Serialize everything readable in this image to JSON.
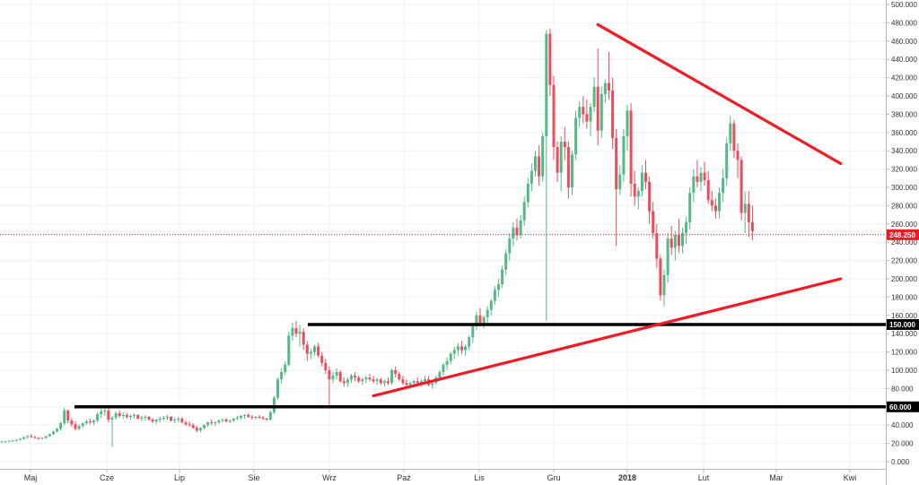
{
  "chart_data": {
    "type": "candlestick",
    "title": "",
    "xlabel": "",
    "ylabel": "",
    "ylim": [
      -8,
      500
    ],
    "y_ticks": [
      0,
      20,
      40,
      60,
      80,
      100,
      120,
      140,
      160,
      180,
      200,
      220,
      240,
      260,
      280,
      300,
      320,
      340,
      360,
      380,
      400,
      420,
      440,
      460,
      480,
      500
    ],
    "y_tick_labels": [
      "0.000",
      "20.000",
      "40.000",
      "60.000",
      "80.000",
      "100.000",
      "120.000",
      "140.000",
      "160.000",
      "180.000",
      "200.000",
      "220.000",
      "240.000",
      "260.000",
      "280.000",
      "300.000",
      "320.000",
      "340.000",
      "360.000",
      "380.000",
      "400.000",
      "420.000",
      "440.000",
      "460.000",
      "480.000",
      "500.000"
    ],
    "x_ticks": [
      {
        "label": "Maj",
        "bold": false
      },
      {
        "label": "Cze",
        "bold": false
      },
      {
        "label": "Lip",
        "bold": false
      },
      {
        "label": "Sie",
        "bold": false
      },
      {
        "label": "Wrz",
        "bold": false
      },
      {
        "label": "Paź",
        "bold": false
      },
      {
        "label": "Lis",
        "bold": false
      },
      {
        "label": "Gru",
        "bold": false
      },
      {
        "label": "2018",
        "bold": true
      },
      {
        "label": "Lut",
        "bold": false
      },
      {
        "label": "Mar",
        "bold": false
      },
      {
        "label": "Kwi",
        "bold": false
      }
    ],
    "grid": true,
    "up_color": "#53b987",
    "down_color": "#eb4d5c",
    "ohlc": [
      [
        22,
        23,
        21,
        22
      ],
      [
        22,
        23,
        21,
        22
      ],
      [
        22,
        23,
        21,
        23
      ],
      [
        23,
        24,
        22,
        23
      ],
      [
        23,
        24,
        22,
        24
      ],
      [
        24,
        26,
        23,
        25
      ],
      [
        25,
        27,
        24,
        27
      ],
      [
        27,
        29,
        25,
        28
      ],
      [
        28,
        30,
        26,
        27
      ],
      [
        27,
        28,
        25,
        26
      ],
      [
        26,
        27,
        24,
        25
      ],
      [
        25,
        27,
        24,
        26
      ],
      [
        26,
        28,
        25,
        28
      ],
      [
        28,
        31,
        27,
        30
      ],
      [
        30,
        34,
        29,
        33
      ],
      [
        33,
        37,
        32,
        36
      ],
      [
        36,
        44,
        34,
        42
      ],
      [
        42,
        59,
        40,
        56
      ],
      [
        56,
        57,
        42,
        45
      ],
      [
        45,
        48,
        38,
        41
      ],
      [
        41,
        44,
        34,
        36
      ],
      [
        36,
        41,
        34,
        39
      ],
      [
        39,
        43,
        37,
        42
      ],
      [
        42,
        46,
        40,
        44
      ],
      [
        44,
        47,
        41,
        43
      ],
      [
        43,
        46,
        40,
        45
      ],
      [
        45,
        54,
        43,
        52
      ],
      [
        52,
        58,
        48,
        55
      ],
      [
        55,
        59,
        50,
        56
      ],
      [
        56,
        59,
        43,
        46
      ],
      [
        46,
        50,
        16,
        48
      ],
      [
        48,
        55,
        46,
        53
      ],
      [
        53,
        56,
        48,
        50
      ],
      [
        50,
        54,
        47,
        51
      ],
      [
        51,
        53,
        47,
        49
      ],
      [
        49,
        52,
        46,
        50
      ],
      [
        50,
        53,
        47,
        51
      ],
      [
        51,
        52,
        46,
        47
      ],
      [
        47,
        50,
        44,
        48
      ],
      [
        48,
        51,
        45,
        49
      ],
      [
        49,
        50,
        45,
        46
      ],
      [
        46,
        48,
        42,
        44
      ],
      [
        44,
        47,
        41,
        46
      ],
      [
        46,
        49,
        43,
        47
      ],
      [
        47,
        50,
        45,
        48
      ],
      [
        48,
        51,
        46,
        49
      ],
      [
        49,
        50,
        44,
        45
      ],
      [
        45,
        48,
        42,
        46
      ],
      [
        46,
        49,
        43,
        47
      ],
      [
        47,
        49,
        42,
        43
      ],
      [
        43,
        45,
        39,
        41
      ],
      [
        41,
        44,
        38,
        40
      ],
      [
        40,
        42,
        36,
        37
      ],
      [
        37,
        39,
        32,
        34
      ],
      [
        34,
        38,
        32,
        37
      ],
      [
        37,
        41,
        35,
        40
      ],
      [
        40,
        44,
        38,
        43
      ],
      [
        43,
        46,
        40,
        42
      ],
      [
        42,
        44,
        39,
        43
      ],
      [
        43,
        46,
        41,
        45
      ],
      [
        45,
        47,
        43,
        46
      ],
      [
        46,
        48,
        43,
        44
      ],
      [
        44,
        46,
        42,
        45
      ],
      [
        45,
        48,
        43,
        47
      ],
      [
        47,
        50,
        45,
        48
      ],
      [
        48,
        51,
        46,
        50
      ],
      [
        50,
        52,
        47,
        51
      ],
      [
        51,
        53,
        48,
        49
      ],
      [
        49,
        51,
        46,
        48
      ],
      [
        48,
        50,
        46,
        49
      ],
      [
        49,
        51,
        47,
        48
      ],
      [
        48,
        50,
        46,
        47
      ],
      [
        47,
        48,
        45,
        46
      ],
      [
        46,
        56,
        45,
        54
      ],
      [
        54,
        72,
        52,
        70
      ],
      [
        70,
        92,
        68,
        90
      ],
      [
        90,
        102,
        85,
        98
      ],
      [
        98,
        110,
        95,
        106
      ],
      [
        106,
        142,
        104,
        138
      ],
      [
        138,
        152,
        132,
        146
      ],
      [
        146,
        154,
        136,
        140
      ],
      [
        140,
        150,
        126,
        142
      ],
      [
        142,
        146,
        122,
        128
      ],
      [
        128,
        132,
        110,
        118
      ],
      [
        118,
        124,
        112,
        120
      ],
      [
        120,
        128,
        116,
        126
      ],
      [
        126,
        130,
        114,
        116
      ],
      [
        116,
        120,
        104,
        108
      ],
      [
        108,
        112,
        96,
        100
      ],
      [
        100,
        104,
        62,
        90
      ],
      [
        90,
        98,
        86,
        94
      ],
      [
        94,
        102,
        90,
        98
      ],
      [
        98,
        100,
        86,
        88
      ],
      [
        88,
        92,
        82,
        86
      ],
      [
        86,
        92,
        82,
        90
      ],
      [
        90,
        96,
        86,
        94
      ],
      [
        94,
        98,
        88,
        92
      ],
      [
        92,
        94,
        86,
        88
      ],
      [
        88,
        92,
        84,
        90
      ],
      [
        90,
        94,
        86,
        92
      ],
      [
        92,
        96,
        88,
        90
      ],
      [
        90,
        94,
        86,
        88
      ],
      [
        88,
        92,
        84,
        90
      ],
      [
        90,
        92,
        84,
        86
      ],
      [
        86,
        90,
        82,
        88
      ],
      [
        88,
        92,
        84,
        86
      ],
      [
        86,
        102,
        84,
        100
      ],
      [
        100,
        104,
        92,
        96
      ],
      [
        96,
        98,
        88,
        90
      ],
      [
        90,
        94,
        84,
        86
      ],
      [
        86,
        90,
        80,
        84
      ],
      [
        84,
        88,
        80,
        86
      ],
      [
        86,
        90,
        82,
        88
      ],
      [
        88,
        92,
        84,
        86
      ],
      [
        86,
        90,
        82,
        88
      ],
      [
        88,
        94,
        84,
        90
      ],
      [
        90,
        94,
        82,
        84
      ],
      [
        84,
        88,
        80,
        86
      ],
      [
        86,
        94,
        84,
        92
      ],
      [
        92,
        100,
        88,
        98
      ],
      [
        98,
        108,
        94,
        106
      ],
      [
        106,
        114,
        100,
        110
      ],
      [
        110,
        120,
        106,
        118
      ],
      [
        118,
        126,
        112,
        122
      ],
      [
        122,
        130,
        116,
        126
      ],
      [
        126,
        132,
        118,
        122
      ],
      [
        122,
        128,
        116,
        126
      ],
      [
        126,
        138,
        122,
        136
      ],
      [
        136,
        150,
        130,
        148
      ],
      [
        148,
        164,
        144,
        160
      ],
      [
        160,
        168,
        148,
        152
      ],
      [
        152,
        160,
        146,
        158
      ],
      [
        158,
        170,
        152,
        166
      ],
      [
        166,
        178,
        160,
        176
      ],
      [
        176,
        192,
        172,
        188
      ],
      [
        188,
        200,
        180,
        194
      ],
      [
        194,
        214,
        190,
        210
      ],
      [
        210,
        232,
        204,
        228
      ],
      [
        228,
        250,
        220,
        244
      ],
      [
        244,
        262,
        236,
        256
      ],
      [
        256,
        266,
        242,
        248
      ],
      [
        248,
        270,
        244,
        264
      ],
      [
        264,
        290,
        258,
        284
      ],
      [
        284,
        310,
        278,
        304
      ],
      [
        304,
        326,
        296,
        318
      ],
      [
        318,
        340,
        312,
        334
      ],
      [
        334,
        346,
        302,
        312
      ],
      [
        312,
        360,
        306,
        356
      ],
      [
        356,
        472,
        154,
        468
      ],
      [
        468,
        474,
        400,
        412
      ],
      [
        412,
        422,
        330,
        344
      ],
      [
        344,
        350,
        306,
        316
      ],
      [
        316,
        356,
        296,
        350
      ],
      [
        350,
        366,
        330,
        344
      ],
      [
        344,
        350,
        288,
        300
      ],
      [
        300,
        340,
        292,
        336
      ],
      [
        336,
        384,
        330,
        376
      ],
      [
        376,
        394,
        366,
        388
      ],
      [
        388,
        400,
        370,
        380
      ],
      [
        380,
        396,
        364,
        372
      ],
      [
        372,
        392,
        356,
        388
      ],
      [
        388,
        420,
        382,
        410
      ],
      [
        410,
        452,
        346,
        362
      ],
      [
        362,
        410,
        354,
        402
      ],
      [
        402,
        418,
        392,
        414
      ],
      [
        414,
        448,
        396,
        406
      ],
      [
        406,
        420,
        342,
        354
      ],
      [
        354,
        364,
        236,
        298
      ],
      [
        298,
        324,
        292,
        314
      ],
      [
        314,
        364,
        306,
        356
      ],
      [
        356,
        390,
        340,
        384
      ],
      [
        384,
        392,
        290,
        304
      ],
      [
        304,
        318,
        280,
        290
      ],
      [
        290,
        300,
        276,
        296
      ],
      [
        296,
        324,
        290,
        316
      ],
      [
        316,
        330,
        298,
        306
      ],
      [
        306,
        312,
        260,
        274
      ],
      [
        274,
        284,
        244,
        250
      ],
      [
        250,
        260,
        212,
        222
      ],
      [
        222,
        226,
        176,
        182
      ],
      [
        182,
        210,
        170,
        204
      ],
      [
        204,
        250,
        196,
        244
      ],
      [
        244,
        258,
        226,
        234
      ],
      [
        234,
        252,
        220,
        248
      ],
      [
        248,
        266,
        228,
        236
      ],
      [
        236,
        256,
        228,
        250
      ],
      [
        250,
        268,
        238,
        262
      ],
      [
        262,
        300,
        254,
        294
      ],
      [
        294,
        320,
        284,
        312
      ],
      [
        312,
        330,
        300,
        306
      ],
      [
        306,
        322,
        296,
        316
      ],
      [
        316,
        328,
        302,
        308
      ],
      [
        308,
        318,
        282,
        286
      ],
      [
        286,
        296,
        274,
        280
      ],
      [
        280,
        288,
        266,
        274
      ],
      [
        274,
        300,
        266,
        294
      ],
      [
        294,
        320,
        284,
        310
      ],
      [
        310,
        354,
        302,
        348
      ],
      [
        348,
        378,
        340,
        370
      ],
      [
        370,
        374,
        332,
        340
      ],
      [
        340,
        348,
        310,
        330
      ],
      [
        330,
        334,
        264,
        272
      ],
      [
        272,
        296,
        250,
        282
      ],
      [
        282,
        296,
        246,
        262
      ],
      [
        262,
        280,
        242,
        252
      ]
    ],
    "support_levels": [
      {
        "label": "60.000",
        "value": 60
      },
      {
        "label": "150.000",
        "value": 150
      }
    ],
    "trendlines": [
      {
        "color": "#ee1c25",
        "from": {
          "bar": 162,
          "value": 478
        },
        "to": {
          "bar": 228,
          "value": 326
        }
      },
      {
        "color": "#ee1c25",
        "from": {
          "bar": 101,
          "value": 72
        },
        "to": {
          "bar": 228,
          "value": 200
        }
      }
    ],
    "current_price": {
      "label": "248.250",
      "value": 248.25,
      "color": "#ee1c25"
    }
  }
}
